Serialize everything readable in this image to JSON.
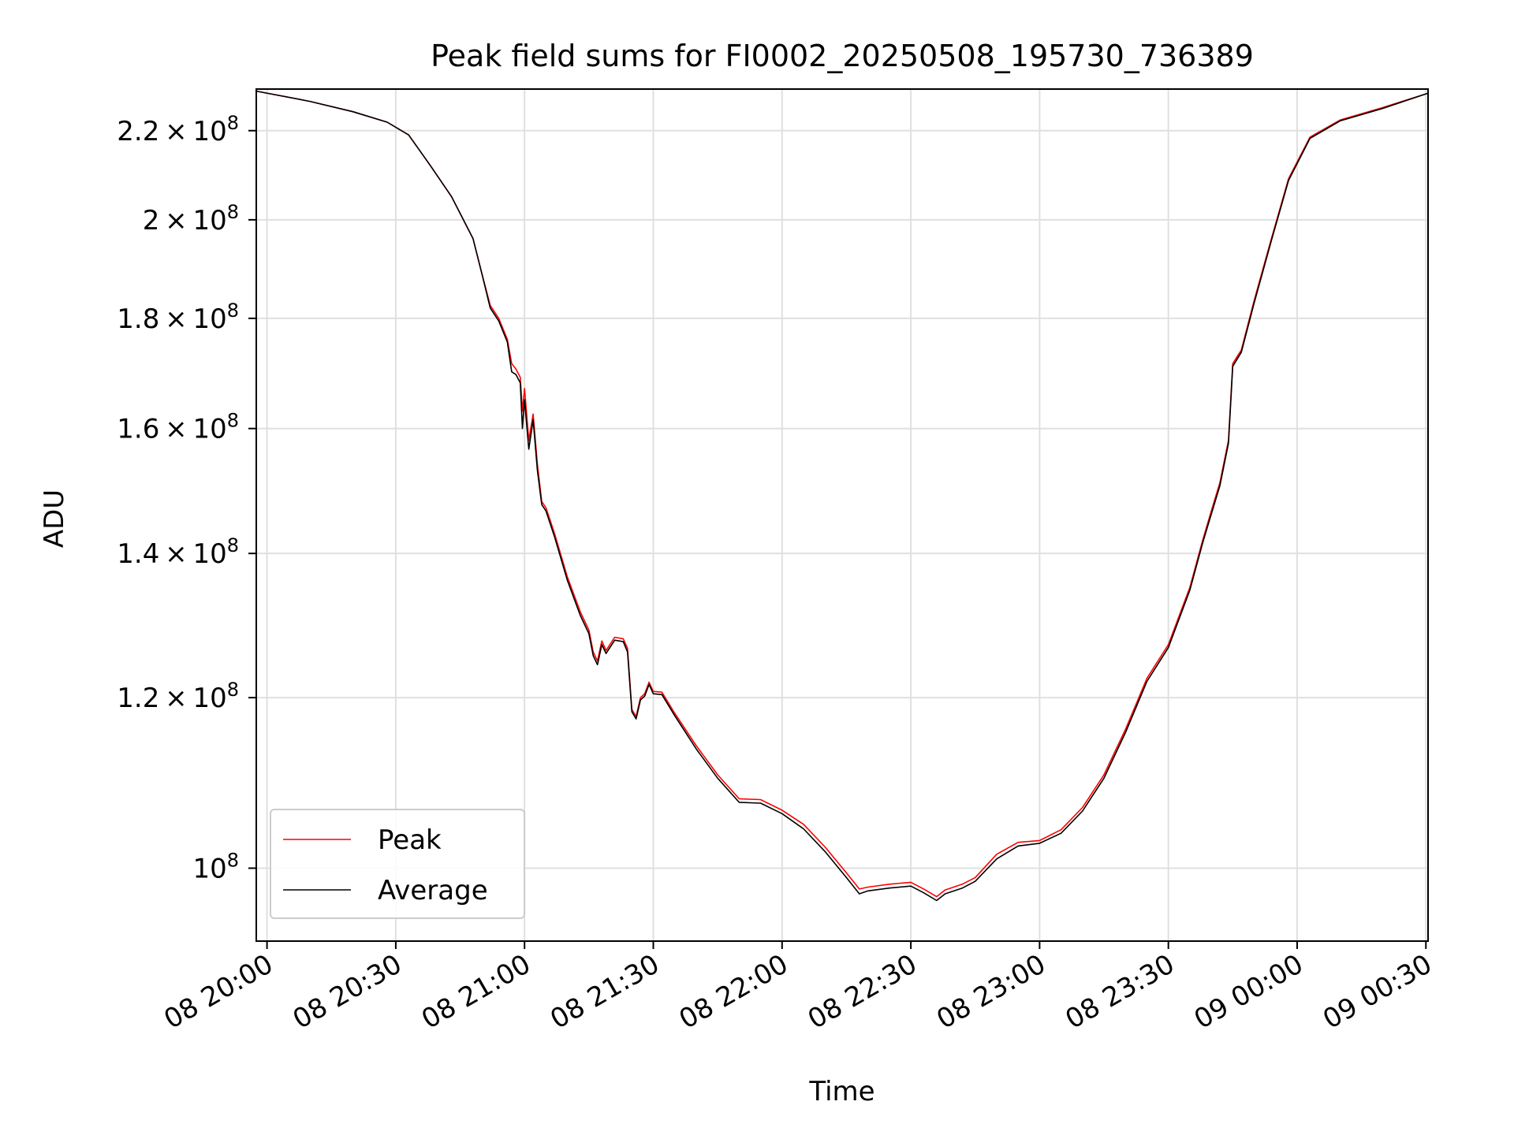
{
  "chart_data": {
    "type": "line",
    "title": "Peak field sums for FI0002_20250508_195730_736389",
    "xlabel": "Time",
    "ylabel": "ADU",
    "x_range": [
      "2025-05-08 19:57:30",
      "2025-05-09 00:30:30"
    ],
    "x_tick_labels": [
      "08 20:00",
      "08 20:30",
      "08 21:00",
      "08 21:30",
      "08 22:00",
      "08 22:30",
      "08 23:00",
      "08 23:30",
      "09 00:00",
      "09 00:30"
    ],
    "x_tick_times": [
      "2025-05-08 20:00",
      "2025-05-08 20:30",
      "2025-05-08 21:00",
      "2025-05-08 21:30",
      "2025-05-08 22:00",
      "2025-05-08 22:30",
      "2025-05-08 23:00",
      "2025-05-08 23:30",
      "2025-05-09 00:00",
      "2025-05-09 00:30"
    ],
    "y_scale": "log",
    "ylim": [
      92500000,
      230000000
    ],
    "y_ticks": [
      {
        "value": 100000000,
        "mantissa": "",
        "base": "10",
        "exp": "8"
      },
      {
        "value": 120000000,
        "mantissa": "1.2",
        "base": "10",
        "exp": "8"
      },
      {
        "value": 140000000,
        "mantissa": "1.4",
        "base": "10",
        "exp": "8"
      },
      {
        "value": 160000000,
        "mantissa": "1.6",
        "base": "10",
        "exp": "8"
      },
      {
        "value": 180000000,
        "mantissa": "1.8",
        "base": "10",
        "exp": "8"
      },
      {
        "value": 200000000,
        "mantissa": "2",
        "base": "10",
        "exp": "8"
      },
      {
        "value": 220000000,
        "mantissa": "2.2",
        "base": "10",
        "exp": "8"
      }
    ],
    "grid": true,
    "legend_position": "lower-left",
    "series": [
      {
        "name": "Peak",
        "color": "#ff0000",
        "points": [
          [
            "2025-05-08 19:57:30",
            229500000
          ],
          [
            "2025-05-08 20:10:00",
            227000000
          ],
          [
            "2025-05-08 20:20:00",
            224500000
          ],
          [
            "2025-05-08 20:28:00",
            222000000
          ],
          [
            "2025-05-08 20:33:00",
            219000000
          ],
          [
            "2025-05-08 20:38:00",
            212000000
          ],
          [
            "2025-05-08 20:43:00",
            205000000
          ],
          [
            "2025-05-08 20:48:00",
            196000000
          ],
          [
            "2025-05-08 20:50:00",
            189000000
          ],
          [
            "2025-05-08 20:52:00",
            182500000
          ],
          [
            "2025-05-08 20:54:00",
            180000000
          ],
          [
            "2025-05-08 20:56:00",
            176000000
          ],
          [
            "2025-05-08 20:57:00",
            171500000
          ],
          [
            "2025-05-08 20:58:00",
            170500000
          ],
          [
            "2025-05-08 20:59:00",
            169000000
          ],
          [
            "2025-05-08 20:59:30",
            163000000
          ],
          [
            "2025-05-08 21:00:00",
            167000000
          ],
          [
            "2025-05-08 21:01:00",
            158000000
          ],
          [
            "2025-05-08 21:02:00",
            162500000
          ],
          [
            "2025-05-08 21:03:00",
            154000000
          ],
          [
            "2025-05-08 21:04:00",
            148000000
          ],
          [
            "2025-05-08 21:05:00",
            147000000
          ],
          [
            "2025-05-08 21:07:00",
            143000000
          ],
          [
            "2025-05-08 21:10:00",
            136500000
          ],
          [
            "2025-05-08 21:13:00",
            131500000
          ],
          [
            "2025-05-08 21:15:00",
            129000000
          ],
          [
            "2025-05-08 21:16:00",
            126000000
          ],
          [
            "2025-05-08 21:17:00",
            124800000
          ],
          [
            "2025-05-08 21:18:00",
            127500000
          ],
          [
            "2025-05-08 21:19:00",
            126200000
          ],
          [
            "2025-05-08 21:21:00",
            128000000
          ],
          [
            "2025-05-08 21:23:00",
            127800000
          ],
          [
            "2025-05-08 21:24:00",
            126500000
          ],
          [
            "2025-05-08 21:25:00",
            118500000
          ],
          [
            "2025-05-08 21:26:00",
            117600000
          ],
          [
            "2025-05-08 21:27:00",
            120000000
          ],
          [
            "2025-05-08 21:28:00",
            120500000
          ],
          [
            "2025-05-08 21:29:00",
            122000000
          ],
          [
            "2025-05-08 21:30:00",
            120800000
          ],
          [
            "2025-05-08 21:32:00",
            120700000
          ],
          [
            "2025-05-08 21:35:00",
            118000000
          ],
          [
            "2025-05-08 21:40:00",
            114000000
          ],
          [
            "2025-05-08 21:45:00",
            110500000
          ],
          [
            "2025-05-08 21:50:00",
            107700000
          ],
          [
            "2025-05-08 21:55:00",
            107600000
          ],
          [
            "2025-05-08 22:00:00",
            106400000
          ],
          [
            "2025-05-08 22:05:00",
            104800000
          ],
          [
            "2025-05-08 22:10:00",
            102300000
          ],
          [
            "2025-05-08 22:15:00",
            99500000
          ],
          [
            "2025-05-08 22:18:00",
            97800000
          ],
          [
            "2025-05-08 22:20:00",
            98000000
          ],
          [
            "2025-05-08 22:25:00",
            98300000
          ],
          [
            "2025-05-08 22:30:00",
            98500000
          ],
          [
            "2025-05-08 22:33:00",
            97800000
          ],
          [
            "2025-05-08 22:36:00",
            97000000
          ],
          [
            "2025-05-08 22:38:00",
            97700000
          ],
          [
            "2025-05-08 22:42:00",
            98300000
          ],
          [
            "2025-05-08 22:45:00",
            99000000
          ],
          [
            "2025-05-08 22:50:00",
            101500000
          ],
          [
            "2025-05-08 22:55:00",
            102800000
          ],
          [
            "2025-05-08 23:00:00",
            103000000
          ],
          [
            "2025-05-08 23:05:00",
            104200000
          ],
          [
            "2025-05-08 23:10:00",
            106700000
          ],
          [
            "2025-05-08 23:15:00",
            110500000
          ],
          [
            "2025-05-08 23:20:00",
            116000000
          ],
          [
            "2025-05-08 23:25:00",
            122500000
          ],
          [
            "2025-05-08 23:30:00",
            127000000
          ],
          [
            "2025-05-08 23:35:00",
            135000000
          ],
          [
            "2025-05-08 23:38:00",
            142000000
          ],
          [
            "2025-05-08 23:40:00",
            146500000
          ],
          [
            "2025-05-08 23:42:00",
            151000000
          ],
          [
            "2025-05-08 23:44:00",
            158000000
          ],
          [
            "2025-05-08 23:45:00",
            171500000
          ],
          [
            "2025-05-08 23:47:00",
            174000000
          ],
          [
            "2025-05-08 23:50:00",
            183500000
          ],
          [
            "2025-05-08 23:54:00",
            196000000
          ],
          [
            "2025-05-08 23:58:00",
            209000000
          ],
          [
            "2025-05-09 00:03:00",
            218500000
          ],
          [
            "2025-05-09 00:10:00",
            222500000
          ],
          [
            "2025-05-09 00:20:00",
            225500000
          ],
          [
            "2025-05-09 00:30:30",
            229000000
          ]
        ]
      },
      {
        "name": "Average",
        "color": "#000000",
        "points": [
          [
            "2025-05-08 19:57:30",
            229500000
          ],
          [
            "2025-05-08 20:10:00",
            227000000
          ],
          [
            "2025-05-08 20:20:00",
            224500000
          ],
          [
            "2025-05-08 20:28:00",
            222000000
          ],
          [
            "2025-05-08 20:33:00",
            219000000
          ],
          [
            "2025-05-08 20:38:00",
            212000000
          ],
          [
            "2025-05-08 20:43:00",
            205000000
          ],
          [
            "2025-05-08 20:48:00",
            196000000
          ],
          [
            "2025-05-08 20:50:00",
            189000000
          ],
          [
            "2025-05-08 20:52:00",
            182000000
          ],
          [
            "2025-05-08 20:54:00",
            179500000
          ],
          [
            "2025-05-08 20:56:00",
            175500000
          ],
          [
            "2025-05-08 20:57:00",
            170000000
          ],
          [
            "2025-05-08 20:58:00",
            169500000
          ],
          [
            "2025-05-08 20:59:00",
            168000000
          ],
          [
            "2025-05-08 20:59:30",
            160000000
          ],
          [
            "2025-05-08 21:00:00",
            165000000
          ],
          [
            "2025-05-08 21:01:00",
            156500000
          ],
          [
            "2025-05-08 21:02:00",
            161500000
          ],
          [
            "2025-05-08 21:03:00",
            153000000
          ],
          [
            "2025-05-08 21:04:00",
            147500000
          ],
          [
            "2025-05-08 21:05:00",
            146500000
          ],
          [
            "2025-05-08 21:07:00",
            142500000
          ],
          [
            "2025-05-08 21:10:00",
            136000000
          ],
          [
            "2025-05-08 21:13:00",
            131000000
          ],
          [
            "2025-05-08 21:15:00",
            128500000
          ],
          [
            "2025-05-08 21:16:00",
            125500000
          ],
          [
            "2025-05-08 21:17:00",
            124300000
          ],
          [
            "2025-05-08 21:18:00",
            127000000
          ],
          [
            "2025-05-08 21:19:00",
            125800000
          ],
          [
            "2025-05-08 21:21:00",
            127600000
          ],
          [
            "2025-05-08 21:23:00",
            127400000
          ],
          [
            "2025-05-08 21:24:00",
            126000000
          ],
          [
            "2025-05-08 21:25:00",
            118200000
          ],
          [
            "2025-05-08 21:26:00",
            117300000
          ],
          [
            "2025-05-08 21:27:00",
            119700000
          ],
          [
            "2025-05-08 21:28:00",
            120200000
          ],
          [
            "2025-05-08 21:29:00",
            121700000
          ],
          [
            "2025-05-08 21:30:00",
            120500000
          ],
          [
            "2025-05-08 21:32:00",
            120400000
          ],
          [
            "2025-05-08 21:35:00",
            117700000
          ],
          [
            "2025-05-08 21:40:00",
            113600000
          ],
          [
            "2025-05-08 21:45:00",
            110100000
          ],
          [
            "2025-05-08 21:50:00",
            107300000
          ],
          [
            "2025-05-08 21:55:00",
            107200000
          ],
          [
            "2025-05-08 22:00:00",
            106000000
          ],
          [
            "2025-05-08 22:05:00",
            104300000
          ],
          [
            "2025-05-08 22:10:00",
            101800000
          ],
          [
            "2025-05-08 22:15:00",
            99000000
          ],
          [
            "2025-05-08 22:18:00",
            97300000
          ],
          [
            "2025-05-08 22:20:00",
            97600000
          ],
          [
            "2025-05-08 22:25:00",
            97900000
          ],
          [
            "2025-05-08 22:30:00",
            98100000
          ],
          [
            "2025-05-08 22:33:00",
            97400000
          ],
          [
            "2025-05-08 22:36:00",
            96600000
          ],
          [
            "2025-05-08 22:38:00",
            97300000
          ],
          [
            "2025-05-08 22:42:00",
            97900000
          ],
          [
            "2025-05-08 22:45:00",
            98600000
          ],
          [
            "2025-05-08 22:50:00",
            101000000
          ],
          [
            "2025-05-08 22:55:00",
            102400000
          ],
          [
            "2025-05-08 23:00:00",
            102700000
          ],
          [
            "2025-05-08 23:05:00",
            103800000
          ],
          [
            "2025-05-08 23:10:00",
            106300000
          ],
          [
            "2025-05-08 23:15:00",
            110100000
          ],
          [
            "2025-05-08 23:20:00",
            115600000
          ],
          [
            "2025-05-08 23:25:00",
            122100000
          ],
          [
            "2025-05-08 23:30:00",
            126600000
          ],
          [
            "2025-05-08 23:35:00",
            134600000
          ],
          [
            "2025-05-08 23:38:00",
            141600000
          ],
          [
            "2025-05-08 23:40:00",
            146000000
          ],
          [
            "2025-05-08 23:42:00",
            150500000
          ],
          [
            "2025-05-08 23:44:00",
            157500000
          ],
          [
            "2025-05-08 23:45:00",
            171000000
          ],
          [
            "2025-05-08 23:47:00",
            173600000
          ],
          [
            "2025-05-08 23:50:00",
            183000000
          ],
          [
            "2025-05-08 23:54:00",
            195600000
          ],
          [
            "2025-05-08 23:58:00",
            208600000
          ],
          [
            "2025-05-09 00:03:00",
            218200000
          ],
          [
            "2025-05-09 00:10:00",
            222300000
          ],
          [
            "2025-05-09 00:20:00",
            225300000
          ],
          [
            "2025-05-09 00:30:30",
            229000000
          ]
        ]
      }
    ]
  }
}
